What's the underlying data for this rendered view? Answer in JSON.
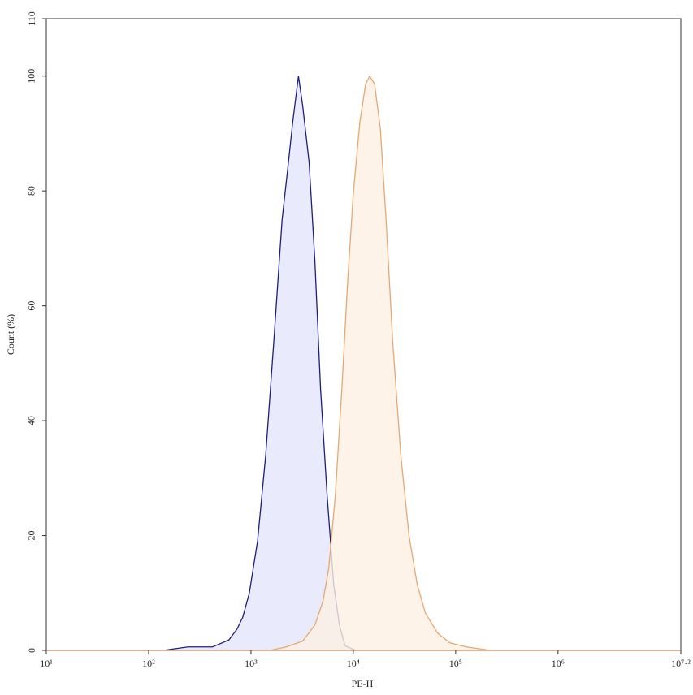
{
  "chart_data": {
    "type": "histogram-overlay",
    "xlabel": "PE-H",
    "ylabel": "Count (%)",
    "xscale": "log",
    "xlim": [
      10,
      15848931.92
    ],
    "ylim": [
      0,
      110
    ],
    "xticks": [
      {
        "value": 10,
        "label": "10¹"
      },
      {
        "value": 100,
        "label": "10²"
      },
      {
        "value": 1000,
        "label": "10³"
      },
      {
        "value": 10000,
        "label": "10⁴"
      },
      {
        "value": 100000,
        "label": "10⁵"
      },
      {
        "value": 1000000,
        "label": "10⁶"
      },
      {
        "value": 15848931.92,
        "label": "10⁷·²"
      }
    ],
    "yticks": [
      0,
      20,
      40,
      60,
      80,
      100,
      110
    ],
    "series": [
      {
        "color": "#1f1f78",
        "fill": "#e4e6fb",
        "x": [
          10,
          139,
          242,
          421,
          608,
          731,
          832,
          964,
          1159,
          1393,
          1675,
          2014,
          2291,
          2559,
          2911,
          3192,
          3698,
          4207,
          4786,
          5546,
          6427,
          7311,
          8318,
          10568,
          15848931.92
        ],
        "values": [
          0,
          0,
          0.6,
          0.6,
          1.8,
          3.7,
          5.8,
          10,
          19,
          34,
          54,
          75,
          84,
          92,
          100,
          95,
          85,
          68,
          45.5,
          27,
          11.5,
          4.4,
          0.8,
          0,
          0
        ]
      },
      {
        "color": "#e6a872",
        "fill": "#fdf0e4",
        "x": [
          10,
          1528,
          2208,
          3192,
          4207,
          5058,
          5754,
          6668,
          7727,
          8790,
          10000,
          11588,
          13183,
          14454,
          16144,
          18365,
          20893,
          24210,
          29107,
          34995,
          42073,
          50582,
          66681,
          87902,
          127057,
          220800,
          15848931.92
        ],
        "values": [
          0,
          0,
          0.6,
          1.6,
          4.4,
          8.6,
          14.3,
          27,
          45.5,
          64,
          79.6,
          92,
          98.6,
          100,
          98.6,
          90.8,
          75,
          54,
          34,
          20,
          11.5,
          6.5,
          3,
          1.3,
          0.6,
          0,
          0
        ]
      }
    ]
  }
}
